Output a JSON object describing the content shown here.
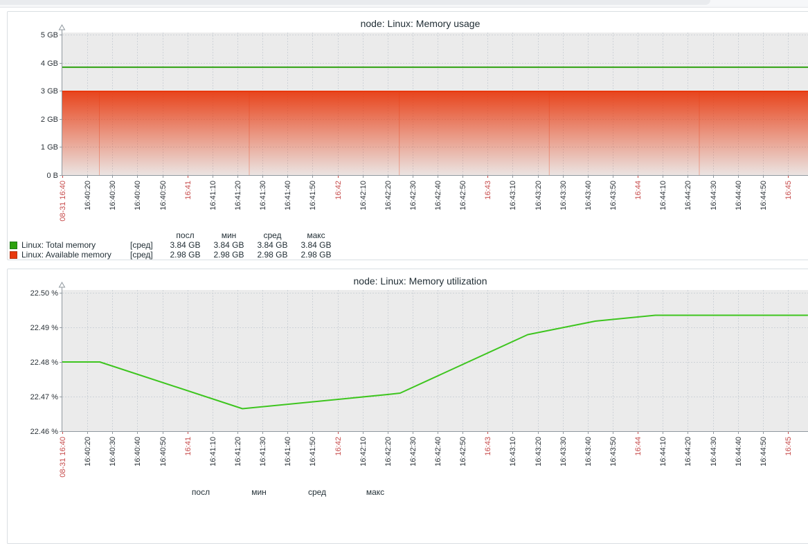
{
  "colors": {
    "plot_bg": "#ebebeb",
    "grid": "#cdd2d7",
    "axis": "#8f979e",
    "label": "#2b3238",
    "label_red": "#c64a4a",
    "title": "#1f2c33",
    "panel_border": "#d9dee2"
  },
  "x_axis": {
    "interval_sec": 10,
    "tick_labels": [
      {
        "t": "08-31 16:40",
        "red": true
      },
      {
        "t": "16:40:20"
      },
      {
        "t": "16:40:30"
      },
      {
        "t": "16:40:40"
      },
      {
        "t": "16:40:50"
      },
      {
        "t": "16:41",
        "red": true
      },
      {
        "t": "16:41:10"
      },
      {
        "t": "16:41:20"
      },
      {
        "t": "16:41:30"
      },
      {
        "t": "16:41:40"
      },
      {
        "t": "16:41:50"
      },
      {
        "t": "16:42",
        "red": true
      },
      {
        "t": "16:42:10"
      },
      {
        "t": "16:42:20"
      },
      {
        "t": "16:42:30"
      },
      {
        "t": "16:42:40"
      },
      {
        "t": "16:42:50"
      },
      {
        "t": "16:43",
        "red": true
      },
      {
        "t": "16:43:10"
      },
      {
        "t": "16:43:20"
      },
      {
        "t": "16:43:30"
      },
      {
        "t": "16:43:40"
      },
      {
        "t": "16:43:50"
      },
      {
        "t": "16:44",
        "red": true
      },
      {
        "t": "16:44:10"
      },
      {
        "t": "16:44:20"
      },
      {
        "t": "16:44:30"
      },
      {
        "t": "16:44:40"
      },
      {
        "t": "16:44:50"
      },
      {
        "t": "16:45",
        "red": true
      }
    ]
  },
  "chart_data": [
    {
      "type": "line+area",
      "title": "node: Linux: Memory usage",
      "ylabel": "",
      "ylim": [
        0,
        5
      ],
      "y_unit": "GB",
      "y_ticks": [
        "0 B",
        "1 GB",
        "2 GB",
        "3 GB",
        "4 GB",
        "5 GB"
      ],
      "grid": true,
      "legend_headers": [
        "посл",
        "мин",
        "сред",
        "макс"
      ],
      "series": [
        {
          "name": "Linux: Total memory",
          "agg": "[сред]",
          "render": "line",
          "color": "#2da10e",
          "swatch_border": "#1e7a16",
          "constant_value_gb": 3.84,
          "stats": {
            "last": "3.84 GB",
            "min": "3.84 GB",
            "avg": "3.84 GB",
            "max": "3.84 GB"
          }
        },
        {
          "name": "Linux: Available memory",
          "agg": "[сред]",
          "render": "gradient-area",
          "color": "#e8380d",
          "swatch_border": "#b5310c",
          "constant_value_gb": 2.98,
          "stats": {
            "last": "2.98 GB",
            "min": "2.98 GB",
            "avg": "2.98 GB",
            "max": "2.98 GB"
          }
        }
      ]
    },
    {
      "type": "line",
      "title": "node: Linux: Memory utilization",
      "ylabel": "",
      "ylim": [
        22.46,
        22.5
      ],
      "y_unit": "%",
      "y_ticks": [
        "22.46 %",
        "22.47 %",
        "22.48 %",
        "22.49 %",
        "22.50 %"
      ],
      "grid": true,
      "legend_headers": [
        "посл",
        "мин",
        "сред",
        "макс"
      ],
      "series": [
        {
          "name": "Linux: Memory utilization",
          "render": "line",
          "color": "#3dc51e",
          "points_sec_percent": [
            [
              0,
              22.48
            ],
            [
              15,
              22.48
            ],
            [
              72,
              22.4665
            ],
            [
              130,
              22.4706
            ],
            [
              135,
              22.471
            ],
            [
              186,
              22.4879
            ],
            [
              213,
              22.4918
            ],
            [
              237,
              22.4935
            ],
            [
              298,
              22.4935
            ]
          ]
        }
      ]
    }
  ]
}
